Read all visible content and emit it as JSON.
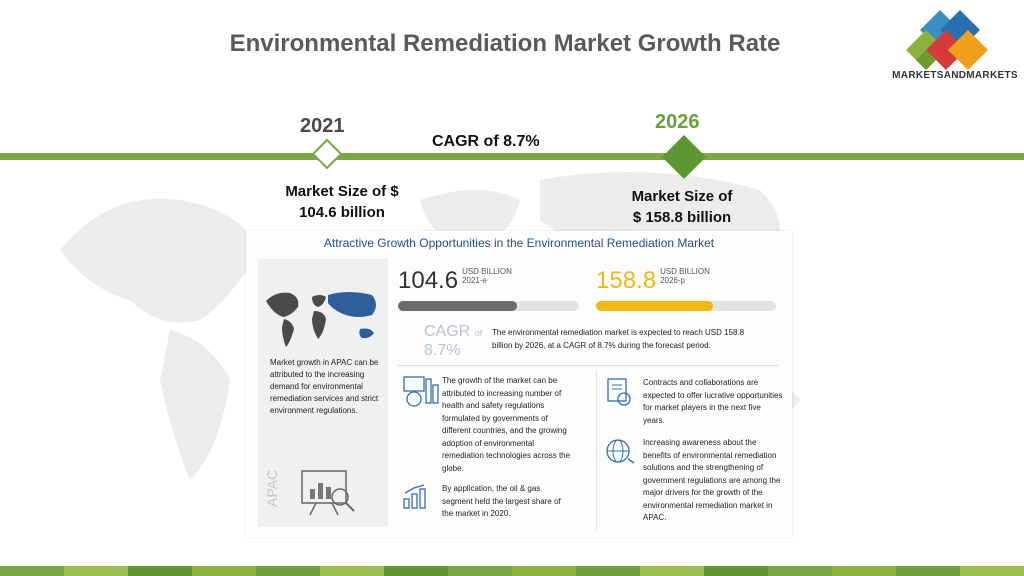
{
  "slide": {
    "title": "Environmental Remediation Market Growth Rate",
    "logo_text": "MARKETSANDMARKETS",
    "timeline": {
      "year_start": "2021",
      "year_end": "2026",
      "cagr": "CAGR of 8.7%",
      "market_start_line1": "Market Size of $",
      "market_start_line2": "104.6 billion",
      "market_end_line1": "Market Size of",
      "market_end_line2": "$ 158.8 billion"
    },
    "colors": {
      "accent_green": "#7aa843",
      "dark_green": "#5f9634",
      "year_2026": "#6da03a",
      "infographic_title": "#1c4e96",
      "yellow": "#f2b80e"
    }
  },
  "infographic": {
    "title": "Attractive Growth Opportunities in the Environmental Remediation Market",
    "apac_text": "Market growth in APAC can be attributed to the increasing demand for environmental remediation services and strict environment regulations.",
    "apac_label": "APAC",
    "value_2021": "104.6",
    "unit_2021": "USD BILLION",
    "year_2021": "2021-e",
    "value_2026": "158.8",
    "unit_2026": "USD BILLION",
    "year_2026": "2026-p",
    "bar_2021_fill": 0.66,
    "bar_2026_fill": 0.65,
    "cagr_label": "CAGR",
    "cagr_of": "of",
    "cagr_value": "8.7%",
    "cagr_text": "The environmental remediation market is expected to reach USD 158.8 billion by 2026, at a CAGR of 8.7% during the forecast period.",
    "growth_text": "The growth of the market can be attributed to increasing number of health and safety regulations formulated by governments of different countries, and the growing adoption of environmental remediation technologies across the globe.",
    "application_text": "By application, the oil & gas segment held the largest share of the market in 2020.",
    "contracts_text": "Contracts and collaborations are expected to offer lucrative opportunities for market players in the next five years.",
    "awareness_text": "Increasing awareness about the benefits of environmental remediation solutions and the strengthening of government regulations are among the major drivers for the growth of the environmental remediation market in APAC."
  }
}
